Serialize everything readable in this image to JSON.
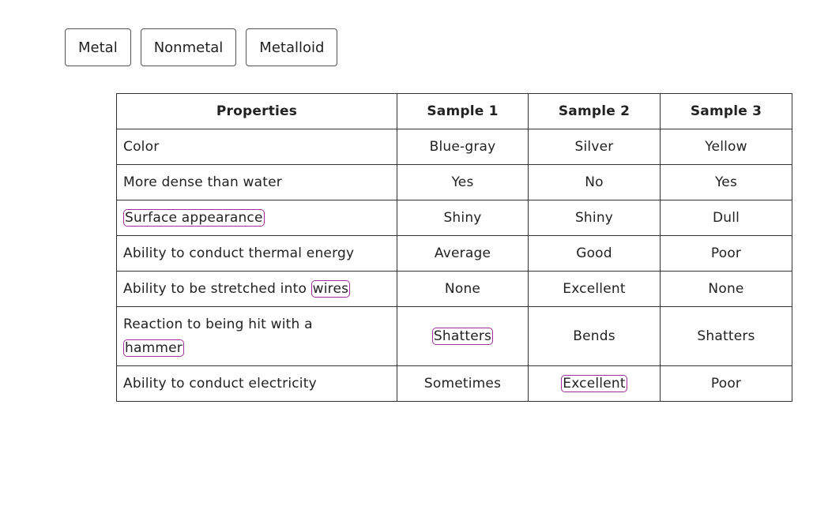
{
  "buttons": [
    "Metal",
    "Nonmetal",
    "Metalloid"
  ],
  "table": {
    "header": [
      "Properties",
      "Sample 1",
      "Sample 2",
      "Sample 3"
    ],
    "rows": [
      [
        "Color",
        "Blue-gray",
        "Silver",
        "Yellow"
      ],
      [
        "More dense than water",
        "Yes",
        "No",
        "Yes"
      ],
      [
        {
          "term": "Surface appearance"
        },
        "Shiny",
        "Shiny",
        "Dull"
      ],
      [
        "Ability to conduct thermal energy",
        "Average",
        "Good",
        "Poor"
      ],
      [
        {
          "text": "Ability to be stretched into",
          "term": "wires"
        },
        "None",
        "Excellent",
        "None"
      ],
      [
        {
          "text": "Reaction to being hit with a",
          "term": "hammer"
        },
        {
          "term": "Shatters"
        },
        "Bends",
        "Shatters"
      ],
      [
        "Ability to conduct electricity",
        "Sometimes",
        {
          "term": "Excellent"
        },
        "Poor"
      ]
    ]
  }
}
